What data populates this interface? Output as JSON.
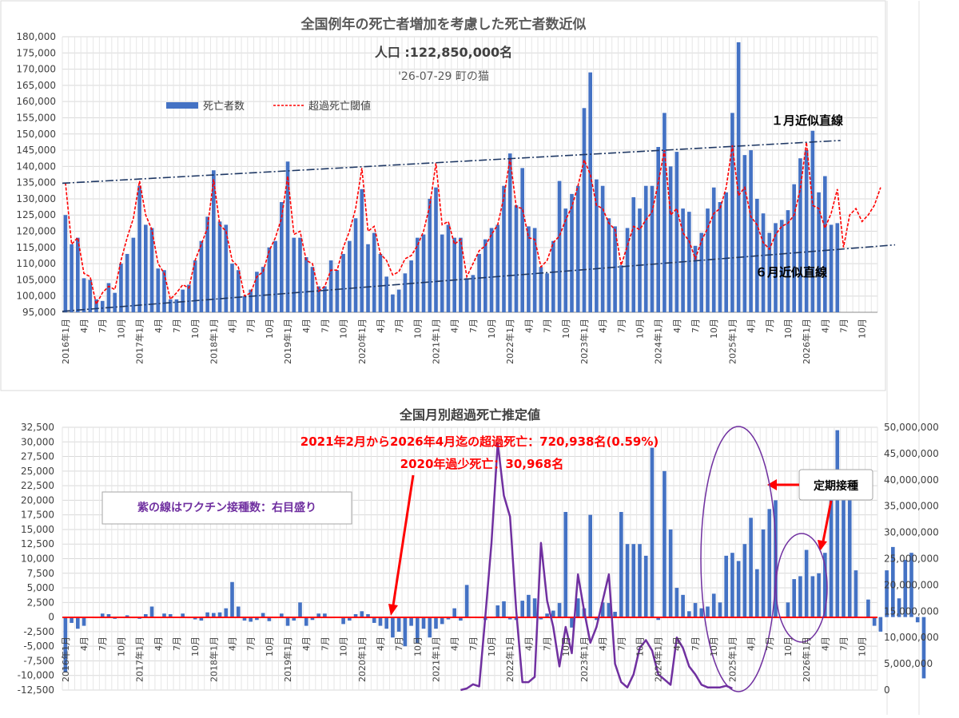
{
  "chart_data": [
    {
      "type": "bar",
      "title": "全国例年の死亡者増加を考慮した死亡者数近似",
      "subtitle": "人口 :122,850,000名",
      "note": "'26-07-29 町の猫",
      "ylim": [
        95000,
        180000
      ],
      "y_ticks": [
        "95,000",
        "100,000",
        "105,000",
        "110,000",
        "115,000",
        "120,000",
        "125,000",
        "130,000",
        "135,000",
        "140,000",
        "145,000",
        "150,000",
        "155,000",
        "160,000",
        "165,000",
        "170,000",
        "175,000",
        "180,000"
      ],
      "x_labels": [
        "2016年1月",
        "4月",
        "7月",
        "10月",
        "2017年1月",
        "4月",
        "7月",
        "10月",
        "2018年1月",
        "4月",
        "7月",
        "10月",
        "2019年1月",
        "4月",
        "7月",
        "10月",
        "2020年1月",
        "4月",
        "7月",
        "10月",
        "2021年1月",
        "4月",
        "7月",
        "10月",
        "2022年1月",
        "4月",
        "7月",
        "10月",
        "2023年1月",
        "4月",
        "7月",
        "10月",
        "2024年1月",
        "4月",
        "7月",
        "10月",
        "2025年1月",
        "4月",
        "7月",
        "10月",
        "2026年1月",
        "4月",
        "7月",
        "10月"
      ],
      "legend": [
        "死亡者数",
        "超過死亡閾値"
      ],
      "trend_labels": {
        "upper": "１月近似直線",
        "lower": "６月近似直線"
      },
      "upper_trend": {
        "start": 134800,
        "end": 148000
      },
      "lower_trend": {
        "start": 95300,
        "end": 115800
      },
      "series": [
        {
          "name": "死亡者数",
          "color": "#4472c4",
          "values": [
            125000,
            116000,
            118000,
            105500,
            105000,
            99000,
            98500,
            104000,
            101000,
            110000,
            113000,
            118000,
            134000,
            122000,
            121000,
            108500,
            108000,
            99000,
            99000,
            102000,
            103500,
            111000,
            117000,
            124500,
            138800,
            123000,
            122000,
            110000,
            108000,
            100000,
            102000,
            107500,
            109000,
            115000,
            117000,
            129000,
            141500,
            118000,
            118000,
            112000,
            109000,
            103000,
            103000,
            111000,
            108000,
            113000,
            117000,
            124000,
            133000,
            116000,
            119500,
            113000,
            106000,
            100500,
            102000,
            107000,
            111000,
            118000,
            119000,
            130000,
            133500,
            119000,
            122000,
            118000,
            118000,
            105500,
            106500,
            113000,
            117500,
            121000,
            122000,
            134000,
            144000,
            128000,
            139500,
            121500,
            121000,
            109000,
            107000,
            117000,
            135500,
            127000,
            131500,
            134000,
            158000,
            169000,
            136000,
            134000,
            124000,
            121500,
            109500,
            121000,
            130500,
            127000,
            134000,
            134000,
            146000,
            156500,
            140000,
            144500,
            127000,
            126000,
            115500,
            119500,
            127000,
            133500,
            129000,
            132000,
            156500,
            178300,
            143500,
            145000,
            130000,
            125500,
            119500,
            122500,
            123500,
            126500,
            134500,
            142500,
            145000,
            151000,
            132000,
            137000,
            122000,
            122500
          ]
        },
        {
          "name": "超過死亡閾値",
          "color": "#ff0000",
          "values": [
            135000,
            116000,
            118000,
            107000,
            106000,
            97500,
            101000,
            103000,
            102000,
            111000,
            118000,
            124000,
            135500,
            125000,
            120500,
            110000,
            107000,
            99000,
            101000,
            103500,
            102500,
            111000,
            116000,
            121000,
            136000,
            122000,
            120000,
            111000,
            109000,
            100000,
            101000,
            106000,
            107500,
            114000,
            118000,
            124000,
            137000,
            119000,
            120000,
            111000,
            110000,
            101500,
            103000,
            108000,
            108000,
            115000,
            120000,
            127000,
            139500,
            120000,
            121500,
            113000,
            111000,
            106500,
            107500,
            111500,
            112500,
            115500,
            120000,
            128000,
            141000,
            122000,
            123000,
            116000,
            117500,
            106000,
            110000,
            114000,
            115500,
            119000,
            122000,
            130500,
            142500,
            127500,
            127000,
            118000,
            117500,
            109000,
            111000,
            116500,
            118500,
            123500,
            127500,
            134000,
            142000,
            137500,
            128000,
            127000,
            122500,
            120500,
            109500,
            115500,
            121500,
            120500,
            123500,
            126000,
            135000,
            145000,
            125000,
            127000,
            119500,
            117000,
            111500,
            117000,
            121000,
            125500,
            127000,
            133500,
            146500,
            131000,
            133500,
            124500,
            122000,
            116500,
            114500,
            119000,
            121500,
            122500,
            125000,
            133000,
            147500,
            128000,
            127000,
            121000,
            125500,
            133000,
            115000,
            125000,
            127000,
            123000,
            125000,
            128000,
            133500
          ]
        }
      ]
    },
    {
      "type": "bar",
      "title": "全国月別超過死亡推定値",
      "ylim": [
        -12500,
        32500
      ],
      "y2lim": [
        0,
        50000000
      ],
      "y_ticks": [
        "-12,500",
        "-10,000",
        "-7,500",
        "-5,000",
        "-2,500",
        "0",
        "2,500",
        "5,000",
        "7,500",
        "10,000",
        "12,500",
        "15,000",
        "17,500",
        "20,000",
        "22,500",
        "25,000",
        "27,500",
        "30,000",
        "32,500"
      ],
      "y2_ticks": [
        "0",
        "5,000,000",
        "10,000,000",
        "15,000,000",
        "20,000,000",
        "25,000,000",
        "30,000,000",
        "35,000,000",
        "40,000,000",
        "45,000,000",
        "50,000,000"
      ],
      "x_labels": [
        "2016年1月",
        "4月",
        "7月",
        "10月",
        "2017年1月",
        "4月",
        "7月",
        "10月",
        "2018年1月",
        "4月",
        "7月",
        "10月",
        "2019年1月",
        "4月",
        "7月",
        "10月",
        "2020年1月",
        "4月",
        "7月",
        "10月",
        "2021年1月",
        "4月",
        "7月",
        "10月",
        "2022年1月",
        "4月",
        "7月",
        "10月",
        "2023年1月",
        "4月",
        "7月",
        "10月",
        "2024年1月",
        "4月",
        "7月",
        "10月",
        "2025年1月",
        "4月",
        "7月",
        "10月",
        "2026年1月",
        "4月",
        "7月",
        "10月"
      ],
      "annotations": {
        "excess": "2021年2月から2026年4月迄の超過死亡：720,938名(0.59%)",
        "under": "2020年過少死亡：30,968名",
        "legend_note": "紫の線はワクチン接種数：右目盛り",
        "callout": "定期接種"
      },
      "series": [
        {
          "name": "超過死亡",
          "color": "#4472c4",
          "values": [
            -9500,
            -1000,
            -2000,
            -1500,
            0,
            -200,
            600,
            500,
            -300,
            0,
            300,
            -200,
            -300,
            500,
            1800,
            0,
            600,
            500,
            0,
            600,
            -200,
            -400,
            -600,
            800,
            700,
            800,
            1500,
            6000,
            1800,
            -600,
            -800,
            -500,
            700,
            -700,
            -200,
            600,
            -1500,
            -600,
            2500,
            -1500,
            -500,
            600,
            600,
            -200,
            0,
            -1200,
            -600,
            500,
            1000,
            500,
            -1000,
            -1500,
            -2000,
            -3500,
            -2500,
            -5000,
            -1500,
            -4500,
            -2000,
            -3500,
            -2000,
            -1200,
            -400,
            1500,
            -600,
            5500,
            -100,
            -200,
            -500,
            -200,
            2000,
            2700,
            -400,
            -500,
            2800,
            3800,
            3200,
            -400,
            600,
            1100,
            2400,
            18000,
            -1800,
            3200,
            1500,
            17500,
            -500,
            2500,
            2400,
            900,
            18000,
            12500,
            12500,
            12500,
            10500,
            29000,
            -500,
            25000,
            15000,
            5000,
            3800,
            1000,
            2400,
            1500,
            1800,
            4000,
            2500,
            10500,
            11000,
            9600,
            12500,
            17000,
            8200,
            15000,
            18500,
            20000,
            0,
            2500,
            6500,
            7000,
            11500,
            7000,
            7500,
            11000,
            25000,
            32000,
            21000,
            20000,
            8000,
            0,
            3000,
            -1500,
            -2500,
            8000,
            12000,
            3200,
            9800,
            11000,
            -900,
            -10500
          ]
        },
        {
          "name": "ワクチン接種数",
          "color": "#7030a0",
          "values": [
            null,
            null,
            null,
            null,
            null,
            null,
            null,
            null,
            null,
            null,
            null,
            null,
            null,
            null,
            null,
            null,
            null,
            null,
            null,
            null,
            null,
            null,
            null,
            null,
            null,
            null,
            null,
            null,
            null,
            null,
            null,
            null,
            null,
            null,
            null,
            null,
            null,
            null,
            null,
            null,
            null,
            null,
            null,
            null,
            null,
            null,
            null,
            null,
            null,
            null,
            null,
            null,
            null,
            null,
            null,
            null,
            null,
            null,
            null,
            null,
            null,
            null,
            null,
            null,
            0,
            300000,
            1100000,
            700000,
            14000000,
            28000000,
            47000000,
            37000000,
            33000000,
            15000000,
            1500000,
            1500000,
            2500000,
            28000000,
            17000000,
            12000000,
            4500000,
            12000000,
            7000000,
            22000000,
            15000000,
            9000000,
            12000000,
            17000000,
            22000000,
            5000000,
            1500000,
            500000,
            3000000,
            8000000,
            9500000,
            7500000,
            3000000,
            2000000,
            1000000,
            10000000,
            8000000,
            4500000,
            3000000,
            1000000,
            500000,
            500000,
            500000,
            800000,
            300000
          ]
        }
      ]
    }
  ]
}
